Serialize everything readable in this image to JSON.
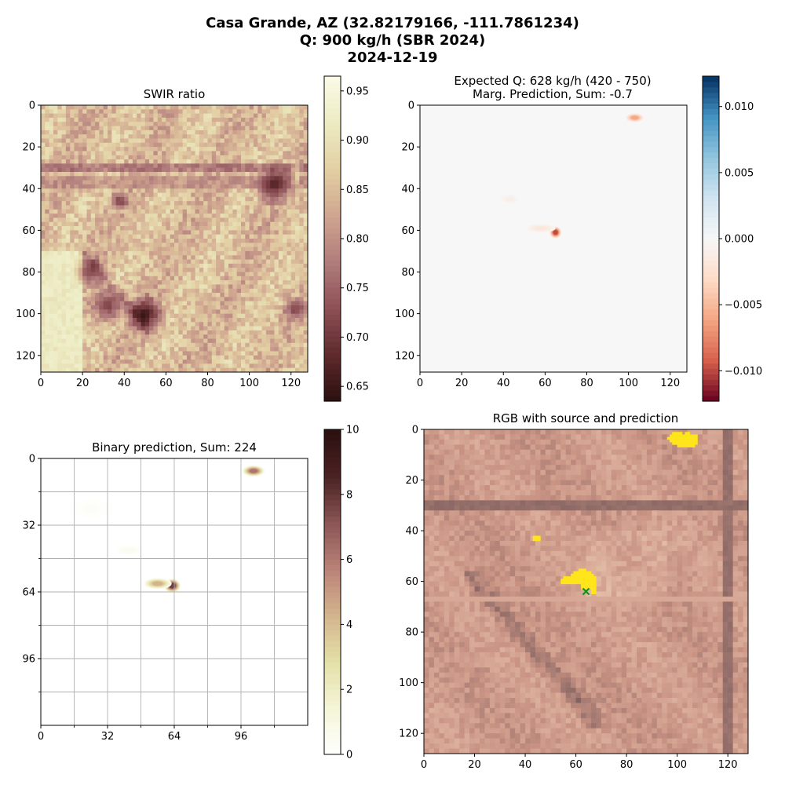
{
  "figure": {
    "suptitle_lines": [
      "Casa Grande, AZ (32.82179166, -111.7861234)",
      "Q: 900 kg/h (SBR 2024)",
      "2024-12-19"
    ]
  },
  "colors": {
    "swir_cmap": [
      "#2b0f0f",
      "#5e2a2c",
      "#8c5055",
      "#b07c7c",
      "#cfa58f",
      "#e3cfa4",
      "#ecebc2",
      "#fbfbe8"
    ],
    "diverging_cmap": [
      "#67001f",
      "#d6604d",
      "#f4a582",
      "#fddbc7",
      "#f7f7f7",
      "#d1e5f0",
      "#92c5de",
      "#4393c3",
      "#053061"
    ],
    "binary_cmap": [
      "#ffffff",
      "#f5f5d8",
      "#e4e0a8",
      "#d4b48e",
      "#b98278",
      "#8a5555",
      "#4a2222",
      "#2b0f0f"
    ],
    "prediction_mask": "#ffe51a",
    "source_marker": "#1a8a1a"
  },
  "chart_data": [
    {
      "id": "swir",
      "type": "heatmap",
      "title": "SWIR ratio",
      "xlim": [
        0,
        128
      ],
      "ylim": [
        128,
        0
      ],
      "xticks": [
        0,
        20,
        40,
        60,
        80,
        100,
        120
      ],
      "yticks": [
        0,
        20,
        40,
        60,
        80,
        100,
        120
      ],
      "colorbar": {
        "min": 0.635,
        "max": 0.965,
        "ticks": [
          0.65,
          0.7,
          0.75,
          0.8,
          0.85,
          0.9,
          0.95
        ]
      },
      "features": [
        {
          "kind": "band",
          "row": 30,
          "value": 0.74
        },
        {
          "kind": "band",
          "row": 37,
          "value": 0.78
        },
        {
          "kind": "band",
          "row": 68,
          "value": 0.84
        },
        {
          "kind": "vband",
          "col": 122,
          "value": 0.86
        },
        {
          "kind": "blob",
          "x": 112,
          "y": 38,
          "r": 6,
          "value": 0.66
        },
        {
          "kind": "blob",
          "x": 38,
          "y": 46,
          "r": 3,
          "value": 0.7
        },
        {
          "kind": "blob",
          "x": 50,
          "y": 100,
          "r": 6,
          "value": 0.64
        },
        {
          "kind": "blob",
          "x": 24,
          "y": 80,
          "r": 5,
          "value": 0.72
        },
        {
          "kind": "blob",
          "x": 32,
          "y": 96,
          "r": 6,
          "value": 0.7
        },
        {
          "kind": "blob",
          "x": 122,
          "y": 98,
          "r": 4,
          "value": 0.7
        }
      ]
    },
    {
      "id": "marginal",
      "type": "heatmap",
      "title_lines": [
        "Expected Q: 628 kg/h (420 - 750)",
        "Marg. Prediction, Sum: -0.7"
      ],
      "xlim": [
        0,
        128
      ],
      "ylim": [
        128,
        0
      ],
      "xticks": [
        0,
        20,
        40,
        60,
        80,
        100,
        120
      ],
      "yticks": [
        0,
        20,
        40,
        60,
        80,
        100,
        120
      ],
      "colorbar": {
        "min": -0.0123,
        "max": 0.0123,
        "ticks": [
          -0.01,
          -0.005,
          0.0,
          0.005,
          0.01
        ],
        "tick_labels": [
          "−0.010",
          "−0.005",
          "0.000",
          "0.005",
          "0.010"
        ]
      },
      "blobs": [
        {
          "x": 103,
          "y": 6,
          "rx": 3,
          "ry": 1.5,
          "value": -0.007
        },
        {
          "x": 65,
          "y": 61,
          "rx": 2,
          "ry": 2,
          "value": -0.0115
        },
        {
          "x": 58,
          "y": 59,
          "rx": 5,
          "ry": 1.5,
          "value": -0.002
        },
        {
          "x": 43,
          "y": 45,
          "rx": 3,
          "ry": 1.5,
          "value": -0.0012
        }
      ]
    },
    {
      "id": "binary",
      "type": "heatmap",
      "title": "Binary prediction, Sum: 224",
      "xlim": [
        0,
        128
      ],
      "ylim": [
        128,
        0
      ],
      "xticks": [
        0,
        32,
        64,
        96
      ],
      "yticks": [
        0,
        32,
        64,
        96
      ],
      "grid_step": 16,
      "grid": true,
      "colorbar": {
        "min": 0,
        "max": 10,
        "ticks": [
          0,
          2,
          4,
          6,
          8,
          10
        ]
      },
      "blobs": [
        {
          "x": 102,
          "y": 6,
          "rx": 4,
          "ry": 2,
          "value": 7
        },
        {
          "x": 63,
          "y": 61,
          "rx": 3,
          "ry": 2.5,
          "value": 9
        },
        {
          "x": 56,
          "y": 60,
          "rx": 5,
          "ry": 2,
          "value": 5
        },
        {
          "x": 42,
          "y": 44,
          "rx": 5,
          "ry": 2,
          "value": 0.6
        },
        {
          "x": 24,
          "y": 24,
          "rx": 8,
          "ry": 4,
          "value": 0.3
        }
      ]
    },
    {
      "id": "rgb",
      "type": "heatmap",
      "title": "RGB with source and prediction",
      "xlim": [
        0,
        128
      ],
      "ylim": [
        128,
        0
      ],
      "xticks": [
        0,
        20,
        40,
        60,
        80,
        100,
        120
      ],
      "yticks": [
        0,
        20,
        40,
        60,
        80,
        100,
        120
      ],
      "prediction_cells": [
        [
          98,
          1
        ],
        [
          99,
          1
        ],
        [
          100,
          1
        ],
        [
          101,
          1
        ],
        [
          103,
          1
        ],
        [
          104,
          1
        ],
        [
          97,
          2
        ],
        [
          98,
          2
        ],
        [
          99,
          2
        ],
        [
          100,
          2
        ],
        [
          101,
          2
        ],
        [
          102,
          2
        ],
        [
          103,
          2
        ],
        [
          104,
          2
        ],
        [
          105,
          2
        ],
        [
          106,
          2
        ],
        [
          107,
          2
        ],
        [
          96,
          3
        ],
        [
          97,
          3
        ],
        [
          98,
          3
        ],
        [
          99,
          3
        ],
        [
          100,
          3
        ],
        [
          101,
          3
        ],
        [
          102,
          3
        ],
        [
          103,
          3
        ],
        [
          104,
          3
        ],
        [
          105,
          3
        ],
        [
          106,
          3
        ],
        [
          107,
          3
        ],
        [
          97,
          4
        ],
        [
          98,
          4
        ],
        [
          99,
          4
        ],
        [
          100,
          4
        ],
        [
          101,
          4
        ],
        [
          102,
          4
        ],
        [
          103,
          4
        ],
        [
          104,
          4
        ],
        [
          105,
          4
        ],
        [
          106,
          4
        ],
        [
          107,
          4
        ],
        [
          98,
          5
        ],
        [
          99,
          5
        ],
        [
          100,
          5
        ],
        [
          101,
          5
        ],
        [
          102,
          5
        ],
        [
          103,
          5
        ],
        [
          104,
          5
        ],
        [
          105,
          5
        ],
        [
          106,
          5
        ],
        [
          107,
          5
        ],
        [
          100,
          6
        ],
        [
          101,
          6
        ],
        [
          102,
          6
        ],
        [
          103,
          6
        ],
        [
          104,
          6
        ],
        [
          105,
          6
        ],
        [
          106,
          6
        ],
        [
          43,
          42
        ],
        [
          44,
          42
        ],
        [
          45,
          42
        ],
        [
          43,
          43
        ],
        [
          44,
          43
        ],
        [
          45,
          43
        ],
        [
          61,
          55
        ],
        [
          62,
          55
        ],
        [
          63,
          55
        ],
        [
          59,
          56
        ],
        [
          60,
          56
        ],
        [
          61,
          56
        ],
        [
          62,
          56
        ],
        [
          63,
          56
        ],
        [
          64,
          56
        ],
        [
          65,
          56
        ],
        [
          58,
          57
        ],
        [
          59,
          57
        ],
        [
          60,
          57
        ],
        [
          61,
          57
        ],
        [
          62,
          57
        ],
        [
          63,
          57
        ],
        [
          64,
          57
        ],
        [
          65,
          57
        ],
        [
          66,
          57
        ],
        [
          55,
          58
        ],
        [
          56,
          58
        ],
        [
          57,
          58
        ],
        [
          58,
          58
        ],
        [
          59,
          58
        ],
        [
          60,
          58
        ],
        [
          61,
          58
        ],
        [
          62,
          58
        ],
        [
          63,
          58
        ],
        [
          64,
          58
        ],
        [
          65,
          58
        ],
        [
          66,
          58
        ],
        [
          67,
          58
        ],
        [
          54,
          59
        ],
        [
          55,
          59
        ],
        [
          56,
          59
        ],
        [
          57,
          59
        ],
        [
          58,
          59
        ],
        [
          59,
          59
        ],
        [
          60,
          59
        ],
        [
          61,
          59
        ],
        [
          62,
          59
        ],
        [
          63,
          59
        ],
        [
          64,
          59
        ],
        [
          65,
          59
        ],
        [
          66,
          59
        ],
        [
          67,
          59
        ],
        [
          54,
          60
        ],
        [
          55,
          60
        ],
        [
          56,
          60
        ],
        [
          57,
          60
        ],
        [
          58,
          60
        ],
        [
          59,
          60
        ],
        [
          60,
          60
        ],
        [
          61,
          60
        ],
        [
          62,
          60
        ],
        [
          63,
          60
        ],
        [
          64,
          60
        ],
        [
          65,
          60
        ],
        [
          66,
          60
        ],
        [
          67,
          60
        ],
        [
          62,
          61
        ],
        [
          63,
          61
        ],
        [
          64,
          61
        ],
        [
          65,
          61
        ],
        [
          66,
          61
        ],
        [
          67,
          61
        ],
        [
          62,
          62
        ],
        [
          63,
          62
        ],
        [
          64,
          62
        ],
        [
          65,
          62
        ],
        [
          66,
          62
        ],
        [
          67,
          62
        ],
        [
          66,
          63
        ],
        [
          67,
          63
        ],
        [
          66,
          64
        ],
        [
          67,
          64
        ]
      ],
      "source": {
        "x": 64,
        "y": 64
      }
    }
  ]
}
